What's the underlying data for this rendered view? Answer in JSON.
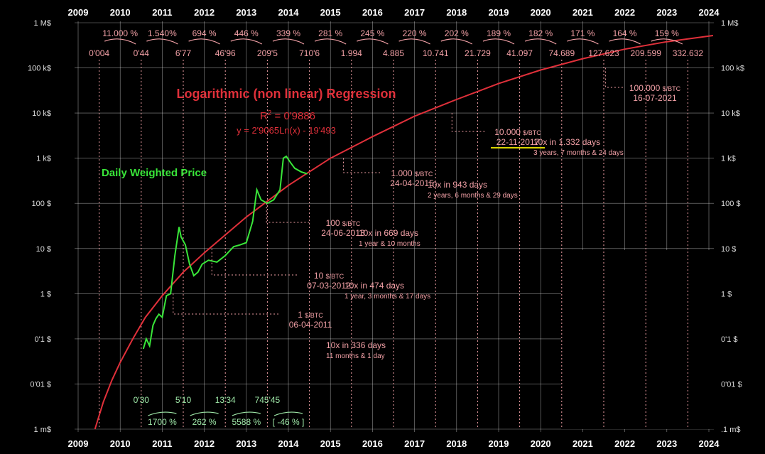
{
  "chart_data": {
    "type": "line",
    "y_scale": "log",
    "x_ticks": [
      "2009",
      "2010",
      "2011",
      "2012",
      "2013",
      "2014",
      "2015",
      "2016",
      "2017",
      "2018",
      "2019",
      "2020",
      "2021",
      "2022",
      "2023",
      "2024"
    ],
    "y_ticks": [
      "1 M$",
      "100 k$",
      "10 k$",
      "1 k$",
      "100 $",
      "10 $",
      "1 $",
      "0'1 $",
      "0'01 $",
      "1 m$"
    ],
    "y_ticks_right": [
      "1 M$",
      "100 k$",
      "10 k$",
      "1 k$",
      "100 $",
      "10 $",
      "1 $",
      "0'1 $",
      "0'01 $",
      ".1 m$"
    ],
    "title": "Logarithmic (non linear) Regression",
    "r2_label": "R",
    "r2_sup": "2",
    "r2_value": " = 0'9886",
    "equation": "y = 2'9065Ln(x) - 19'493",
    "series": [
      {
        "name": "Daily Weighted Price",
        "color": "#39e639",
        "x": [
          2010.55,
          2010.62,
          2010.7,
          2010.78,
          2010.85,
          2010.92,
          2011.0,
          2011.1,
          2011.2,
          2011.3,
          2011.4,
          2011.45,
          2011.55,
          2011.65,
          2011.75,
          2011.85,
          2011.95,
          2012.1,
          2012.3,
          2012.5,
          2012.7,
          2012.85,
          2013.0,
          2013.15,
          2013.25,
          2013.35,
          2013.5,
          2013.65,
          2013.8,
          2013.88,
          2013.95,
          2014.05,
          2014.15,
          2014.3,
          2014.45
        ],
        "y": [
          0.06,
          0.1,
          0.07,
          0.2,
          0.28,
          0.35,
          0.3,
          0.9,
          1.0,
          7.0,
          30.0,
          18.0,
          12.0,
          4.5,
          2.5,
          3.0,
          4.5,
          5.5,
          5.0,
          7.0,
          11.0,
          12.0,
          13.5,
          40.0,
          200.0,
          120.0,
          100.0,
          120.0,
          200.0,
          1000.0,
          1100.0,
          800.0,
          600.0,
          500.0,
          450.0
        ]
      },
      {
        "name": "Regression",
        "color": "#e0303a",
        "x": [
          2009.4,
          2009.6,
          2009.8,
          2010.0,
          2010.3,
          2010.6,
          2011.0,
          2011.5,
          2012.0,
          2012.5,
          2013.0,
          2014.0,
          2015.0,
          2016.0,
          2017.0,
          2018.0,
          2019.0,
          2020.0,
          2021.0,
          2022.0,
          2023.0,
          2024.1
        ],
        "y": [
          0.001,
          0.004,
          0.012,
          0.03,
          0.1,
          0.3,
          0.9,
          3,
          8,
          20,
          50,
          250,
          1000,
          3000,
          8500,
          20000,
          45000,
          90000,
          160000,
          260000,
          380000,
          520000
        ]
      }
    ],
    "milestones": [
      {
        "price": "1",
        "unit": "$/BTC",
        "date": "06-04-2011",
        "next": "10x in 336 days",
        "detail": "11 months & 1 day"
      },
      {
        "price": "10",
        "unit": "$/BTC",
        "date": "07-03-2012",
        "next": "10x in 474 days",
        "detail": "1 year, 3 months & 17 days"
      },
      {
        "price": "100",
        "unit": "$/BTC",
        "date": "24-06-2013",
        "next": "10x in 669 days",
        "detail": "1 year & 10 months"
      },
      {
        "price": "1.000",
        "unit": "$/BTC",
        "date": "24-04-2015",
        "next": "10x in 943 days",
        "detail": "2 years, 6 months & 29 days"
      },
      {
        "price": "10.000",
        "unit": "$/BTC",
        "date": "22-11-2017",
        "next": "10x  in 1.332 days",
        "detail": "3 years, 7 months & 24 days"
      },
      {
        "price": "100.000",
        "unit": "$/BTC",
        "date": "16-07-2021",
        "next": "",
        "detail": ""
      }
    ],
    "regression_values": [
      "0'004",
      "0'44",
      "6'77",
      "46'96",
      "209'5",
      "710'6",
      "1.994",
      "4.885",
      "10.741",
      "21.729",
      "41.097",
      "74.689",
      "127.623",
      "209.599",
      "332.632"
    ],
    "regression_growth": [
      "11.000 %",
      "1.540%",
      "694 %",
      "446 %",
      "339 %",
      "281 %",
      "245 %",
      "220 %",
      "202 %",
      "189 %",
      "182 %",
      "171 %",
      "164 %",
      "159 %"
    ],
    "actual_values": [
      "0'30",
      "5'10",
      "13'34",
      "745'45"
    ],
    "actual_growth": [
      "1700 %",
      "262 %",
      "5588 %",
      "[ -46 % ]"
    ],
    "colors": {
      "background": "#000000",
      "regression": "#e0303a",
      "price": "#39e639",
      "annotation": "#f2a0a6",
      "highlight": "#d8d400",
      "grid": "#ffffff"
    }
  }
}
